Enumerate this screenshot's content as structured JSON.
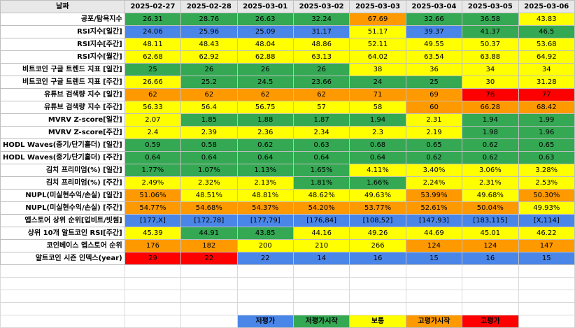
{
  "colors": {
    "blue": "#4a86e8",
    "green": "#34a853",
    "yellow": "#ffff00",
    "orange": "#ff9900",
    "red": "#ff0000",
    "header_bg": "#e8e8e8"
  },
  "header": {
    "corner": "날짜",
    "dates": [
      "2025-02-27",
      "2025-02-28",
      "2025-03-01",
      "2025-03-02",
      "2025-03-03",
      "2025-03-04",
      "2025-03-05",
      "2025-03-06"
    ]
  },
  "rows": [
    {
      "label": "공포/탐욕지수",
      "cells": [
        [
          "26.31",
          "green"
        ],
        [
          "28.76",
          "green"
        ],
        [
          "26.63",
          "green"
        ],
        [
          "32.24",
          "green"
        ],
        [
          "67.69",
          "orange"
        ],
        [
          "32.66",
          "green"
        ],
        [
          "36.58",
          "green"
        ],
        [
          "43.83",
          "yellow"
        ]
      ]
    },
    {
      "label": "RSI지수[일간]",
      "cells": [
        [
          "24.06",
          "blue"
        ],
        [
          "25.96",
          "blue"
        ],
        [
          "25.09",
          "blue"
        ],
        [
          "31.17",
          "blue"
        ],
        [
          "51.17",
          "yellow"
        ],
        [
          "39.37",
          "blue"
        ],
        [
          "41.37",
          "green"
        ],
        [
          "46.5",
          "green"
        ]
      ]
    },
    {
      "label": "RSI지수[주간]",
      "cells": [
        [
          "48.11",
          "yellow"
        ],
        [
          "48.43",
          "yellow"
        ],
        [
          "48.04",
          "yellow"
        ],
        [
          "48.86",
          "yellow"
        ],
        [
          "52.11",
          "yellow"
        ],
        [
          "49.55",
          "yellow"
        ],
        [
          "50.37",
          "yellow"
        ],
        [
          "53.68",
          "yellow"
        ]
      ]
    },
    {
      "label": "RSI지수[월간]",
      "cells": [
        [
          "62.68",
          "yellow"
        ],
        [
          "62.92",
          "yellow"
        ],
        [
          "62.88",
          "yellow"
        ],
        [
          "63.13",
          "yellow"
        ],
        [
          "64.02",
          "yellow"
        ],
        [
          "63.54",
          "yellow"
        ],
        [
          "63.88",
          "yellow"
        ],
        [
          "64.92",
          "yellow"
        ]
      ]
    },
    {
      "label": "비트코인 구글 트렌드 지표 [일간]",
      "cells": [
        [
          "25",
          "green"
        ],
        [
          "26",
          "green"
        ],
        [
          "26",
          "green"
        ],
        [
          "26",
          "green"
        ],
        [
          "38",
          "yellow"
        ],
        [
          "36",
          "yellow"
        ],
        [
          "34",
          "yellow"
        ],
        [
          "34",
          "yellow"
        ]
      ]
    },
    {
      "label": "비트코인 구글 트렌드 지표 [주간]",
      "cells": [
        [
          "26.66",
          "yellow"
        ],
        [
          "25.2",
          "green"
        ],
        [
          "24.5",
          "green"
        ],
        [
          "23.66",
          "green"
        ],
        [
          "24",
          "green"
        ],
        [
          "25",
          "green"
        ],
        [
          "30",
          "yellow"
        ],
        [
          "31.28",
          "yellow"
        ]
      ]
    },
    {
      "label": "유튜브 검색량 지수 [일간]",
      "cells": [
        [
          "62",
          "orange"
        ],
        [
          "62",
          "orange"
        ],
        [
          "62",
          "orange"
        ],
        [
          "62",
          "orange"
        ],
        [
          "71",
          "orange"
        ],
        [
          "69",
          "orange"
        ],
        [
          "76",
          "red"
        ],
        [
          "77",
          "red"
        ]
      ]
    },
    {
      "label": "유튜브 검색량 지수 [주간]",
      "cells": [
        [
          "56.33",
          "yellow"
        ],
        [
          "56.4",
          "yellow"
        ],
        [
          "56.75",
          "yellow"
        ],
        [
          "57",
          "yellow"
        ],
        [
          "58",
          "yellow"
        ],
        [
          "60",
          "orange"
        ],
        [
          "66.28",
          "orange"
        ],
        [
          "68.42",
          "orange"
        ]
      ]
    },
    {
      "label": "MVRV Z-score[일간]",
      "cells": [
        [
          "2.07",
          "yellow"
        ],
        [
          "1.85",
          "green"
        ],
        [
          "1.88",
          "green"
        ],
        [
          "1.87",
          "green"
        ],
        [
          "1.94",
          "green"
        ],
        [
          "2.31",
          "yellow"
        ],
        [
          "1.94",
          "green"
        ],
        [
          "1.99",
          "green"
        ]
      ]
    },
    {
      "label": "MVRV Z-score[주간]",
      "cells": [
        [
          "2.4",
          "yellow"
        ],
        [
          "2.39",
          "yellow"
        ],
        [
          "2.36",
          "yellow"
        ],
        [
          "2.34",
          "yellow"
        ],
        [
          "2.3",
          "yellow"
        ],
        [
          "2.19",
          "yellow"
        ],
        [
          "1.98",
          "green"
        ],
        [
          "1.96",
          "green"
        ]
      ]
    },
    {
      "label": "HODL Waves(중기/단기홀더) [일간]",
      "cells": [
        [
          "0.59",
          "green"
        ],
        [
          "0.58",
          "green"
        ],
        [
          "0.62",
          "green"
        ],
        [
          "0.63",
          "green"
        ],
        [
          "0.68",
          "green"
        ],
        [
          "0.65",
          "green"
        ],
        [
          "0.62",
          "green"
        ],
        [
          "0.65",
          "green"
        ]
      ]
    },
    {
      "label": "HODL Waves(중기/단기홀더) [주간]",
      "cells": [
        [
          "0.64",
          "green"
        ],
        [
          "0.64",
          "green"
        ],
        [
          "0.64",
          "green"
        ],
        [
          "0.64",
          "green"
        ],
        [
          "0.64",
          "green"
        ],
        [
          "0.62",
          "green"
        ],
        [
          "0.62",
          "green"
        ],
        [
          "0.63",
          "green"
        ]
      ]
    },
    {
      "label": "김치 프리미엄(%) [일간]",
      "cells": [
        [
          "1.77%",
          "green"
        ],
        [
          "1.07%",
          "green"
        ],
        [
          "1.13%",
          "green"
        ],
        [
          "1.65%",
          "green"
        ],
        [
          "4.11%",
          "yellow"
        ],
        [
          "3.40%",
          "yellow"
        ],
        [
          "3.06%",
          "yellow"
        ],
        [
          "3.28%",
          "yellow"
        ]
      ]
    },
    {
      "label": "김치 프리미엄(%) [주간]",
      "cells": [
        [
          "2.49%",
          "yellow"
        ],
        [
          "2.32%",
          "yellow"
        ],
        [
          "2.13%",
          "yellow"
        ],
        [
          "1.81%",
          "green"
        ],
        [
          "1.66%",
          "green"
        ],
        [
          "2.24%",
          "yellow"
        ],
        [
          "2.31%",
          "yellow"
        ],
        [
          "2.53%",
          "yellow"
        ]
      ]
    },
    {
      "label": "NUPL(미실현수익/손실) [일간]",
      "cells": [
        [
          "51.06%",
          "orange"
        ],
        [
          "48.51%",
          "yellow"
        ],
        [
          "48.81%",
          "yellow"
        ],
        [
          "48.62%",
          "yellow"
        ],
        [
          "49.63%",
          "yellow"
        ],
        [
          "53.99%",
          "orange"
        ],
        [
          "49.68%",
          "yellow"
        ],
        [
          "50.30%",
          "orange"
        ]
      ]
    },
    {
      "label": "NUPL(미실현수익/손실) [주간]",
      "cells": [
        [
          "54.77%",
          "orange"
        ],
        [
          "54.68%",
          "orange"
        ],
        [
          "54.37%",
          "orange"
        ],
        [
          "54.20%",
          "orange"
        ],
        [
          "53.77%",
          "orange"
        ],
        [
          "52.61%",
          "orange"
        ],
        [
          "50.04%",
          "orange"
        ],
        [
          "49.93%",
          "yellow"
        ]
      ]
    },
    {
      "label": "앱스토어 상위 순위[업비트/빗썸]",
      "cells": [
        [
          "[177,X]",
          "blue"
        ],
        [
          "[172,78]",
          "blue"
        ],
        [
          "[177,79]",
          "blue"
        ],
        [
          "[176,84]",
          "blue"
        ],
        [
          "[108,52]",
          "blue"
        ],
        [
          "[147,93]",
          "blue"
        ],
        [
          "[183,115]",
          "blue"
        ],
        [
          "[X,114]",
          "blue"
        ]
      ]
    },
    {
      "label": "상위 10개 알트코인 RSI[주간]",
      "cells": [
        [
          "45.39",
          "yellow"
        ],
        [
          "44.91",
          "green"
        ],
        [
          "43.85",
          "green"
        ],
        [
          "44.16",
          "yellow"
        ],
        [
          "49.26",
          "yellow"
        ],
        [
          "44.69",
          "yellow"
        ],
        [
          "45.01",
          "yellow"
        ],
        [
          "46.22",
          "yellow"
        ]
      ]
    },
    {
      "label": "코인베이스 앱스토어 순위",
      "cells": [
        [
          "176",
          "orange"
        ],
        [
          "182",
          "orange"
        ],
        [
          "200",
          "yellow"
        ],
        [
          "210",
          "yellow"
        ],
        [
          "266",
          "yellow"
        ],
        [
          "124",
          "orange"
        ],
        [
          "124",
          "orange"
        ],
        [
          "147",
          "orange"
        ]
      ]
    },
    {
      "label": "알트코인 시즌 인덱스(year)",
      "cells": [
        [
          "29",
          "red"
        ],
        [
          "22",
          "red"
        ],
        [
          "22",
          "blue"
        ],
        [
          "14",
          "blue"
        ],
        [
          "16",
          "blue"
        ],
        [
          "15",
          "blue"
        ],
        [
          "16",
          "blue"
        ],
        [
          "15",
          "blue"
        ]
      ]
    }
  ],
  "legend": [
    {
      "label": "저평가",
      "color": "blue"
    },
    {
      "label": "저평가시작",
      "color": "green"
    },
    {
      "label": "보통",
      "color": "yellow"
    },
    {
      "label": "고평가시작",
      "color": "orange"
    },
    {
      "label": "고평가",
      "color": "red"
    }
  ]
}
